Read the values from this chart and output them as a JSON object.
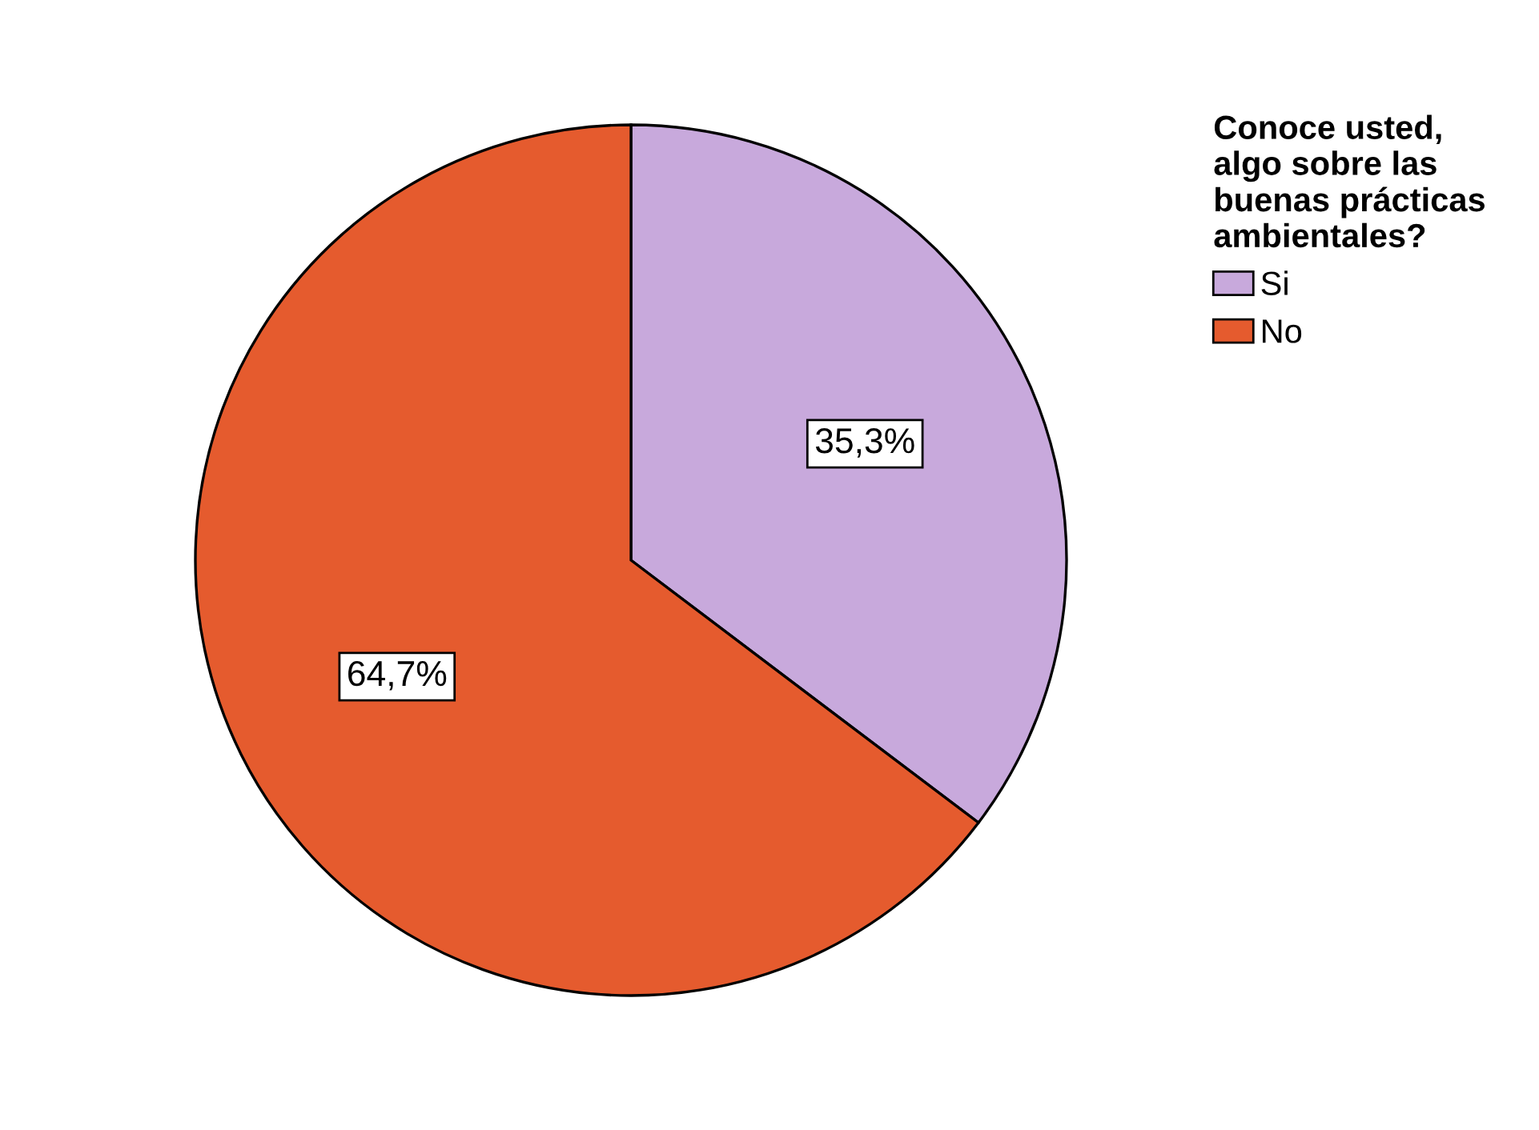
{
  "chart_data": {
    "type": "pie",
    "legend_title": "Conoce usted,\nalgo sobre las\nbuenas prácticas\nambientales?",
    "categories": [
      "Si",
      "No"
    ],
    "values": [
      35.3,
      64.7
    ],
    "value_labels": [
      "35,3%",
      "64,7%"
    ],
    "colors": [
      "#c8a9dc",
      "#e55b2e"
    ],
    "legend": "top right"
  }
}
